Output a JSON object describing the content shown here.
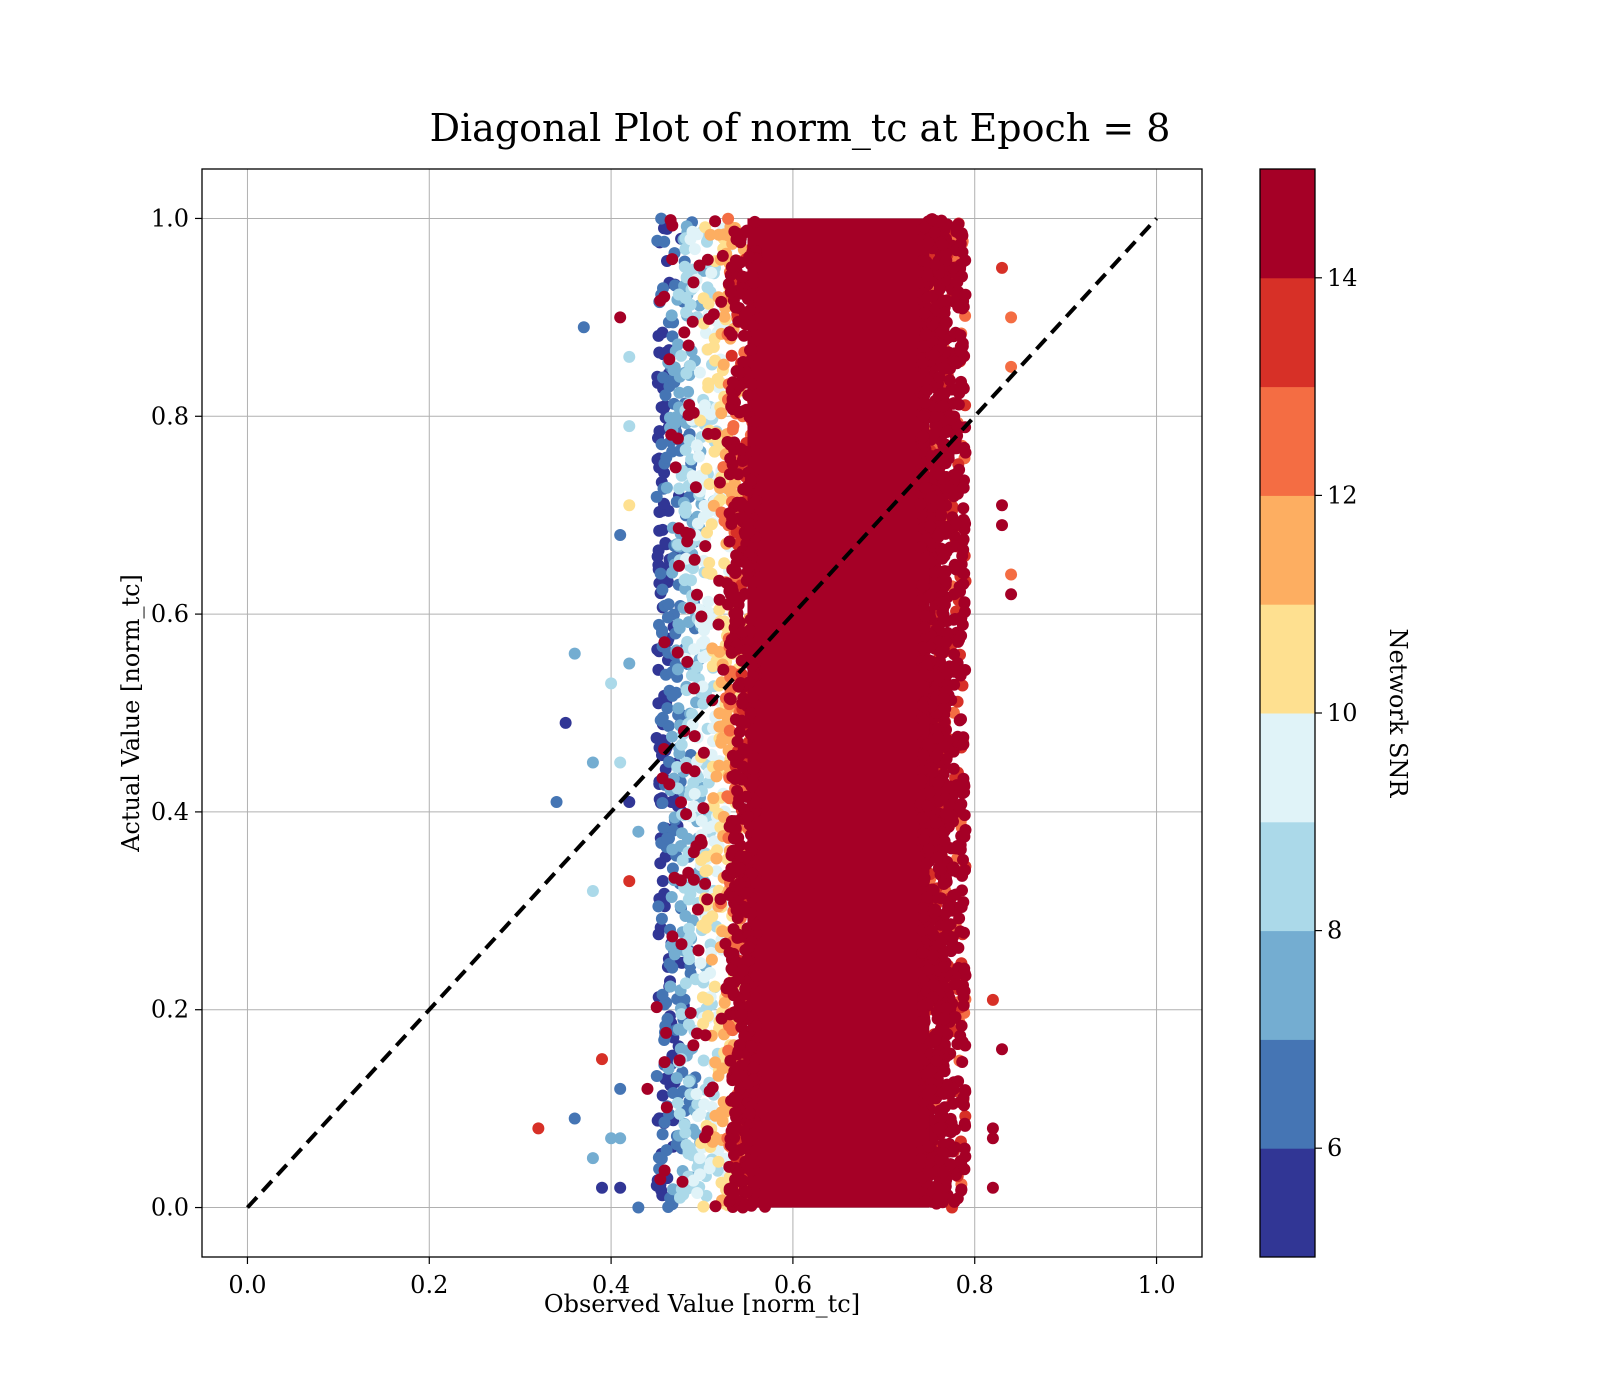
{
  "chart_data": {
    "type": "scatter",
    "title": "Diagonal Plot of norm_tc at Epoch = 8",
    "xlabel": "Observed Value [norm_tc]",
    "ylabel": "Actual Value [norm_tc]",
    "xlim": [
      -0.05,
      1.05
    ],
    "ylim": [
      -0.05,
      1.05
    ],
    "xticks": [
      "0.0",
      "0.2",
      "0.4",
      "0.6",
      "0.8",
      "1.0"
    ],
    "yticks": [
      "0.0",
      "0.2",
      "0.4",
      "0.6",
      "0.8",
      "1.0"
    ],
    "grid": true,
    "reference_line": {
      "style": "dashed",
      "color": "#000000",
      "from": [
        0,
        0
      ],
      "to": [
        1,
        1
      ]
    },
    "colorbar": {
      "label": "Network SNR",
      "range": [
        5,
        15
      ],
      "ticks": [
        "6",
        "8",
        "10",
        "12",
        "14"
      ],
      "levels": [
        5,
        6,
        7,
        8,
        9,
        10,
        11,
        12,
        13,
        14,
        15
      ],
      "colors": [
        "#313695",
        "#4575b4",
        "#74add1",
        "#abd9e9",
        "#e0f3f8",
        "#fee090",
        "#fdae61",
        "#f46d43",
        "#d73027",
        "#a50026"
      ]
    },
    "distribution": {
      "y_range": [
        0,
        1
      ],
      "dense_core_x_range": [
        0.55,
        0.75
      ],
      "core_snr": 15,
      "low_snr_edge_x": 0.45
    },
    "outliers": [
      {
        "x": 0.37,
        "y": 0.89,
        "snr": 6.5
      },
      {
        "x": 0.41,
        "y": 0.9,
        "snr": 14.5
      },
      {
        "x": 0.42,
        "y": 0.86,
        "snr": 8.5
      },
      {
        "x": 0.42,
        "y": 0.79,
        "snr": 8.5
      },
      {
        "x": 0.41,
        "y": 0.68,
        "snr": 6.5
      },
      {
        "x": 0.42,
        "y": 0.71,
        "snr": 10.5
      },
      {
        "x": 0.36,
        "y": 0.56,
        "snr": 7.0
      },
      {
        "x": 0.42,
        "y": 0.55,
        "snr": 7.0
      },
      {
        "x": 0.4,
        "y": 0.53,
        "snr": 8.5
      },
      {
        "x": 0.35,
        "y": 0.49,
        "snr": 5.5
      },
      {
        "x": 0.38,
        "y": 0.45,
        "snr": 7.0
      },
      {
        "x": 0.41,
        "y": 0.45,
        "snr": 8.5
      },
      {
        "x": 0.34,
        "y": 0.41,
        "snr": 6.0
      },
      {
        "x": 0.42,
        "y": 0.41,
        "snr": 5.5
      },
      {
        "x": 0.43,
        "y": 0.38,
        "snr": 7.0
      },
      {
        "x": 0.38,
        "y": 0.32,
        "snr": 8.5
      },
      {
        "x": 0.42,
        "y": 0.33,
        "snr": 13.5
      },
      {
        "x": 0.39,
        "y": 0.15,
        "snr": 13.5
      },
      {
        "x": 0.41,
        "y": 0.12,
        "snr": 6.5
      },
      {
        "x": 0.44,
        "y": 0.12,
        "snr": 14.5
      },
      {
        "x": 0.32,
        "y": 0.08,
        "snr": 13.5
      },
      {
        "x": 0.36,
        "y": 0.09,
        "snr": 6.5
      },
      {
        "x": 0.4,
        "y": 0.07,
        "snr": 7.0
      },
      {
        "x": 0.41,
        "y": 0.07,
        "snr": 7.0
      },
      {
        "x": 0.38,
        "y": 0.05,
        "snr": 7.0
      },
      {
        "x": 0.39,
        "y": 0.02,
        "snr": 5.5
      },
      {
        "x": 0.41,
        "y": 0.02,
        "snr": 5.5
      },
      {
        "x": 0.43,
        "y": 0.0,
        "snr": 6.0
      },
      {
        "x": 0.84,
        "y": 0.9,
        "snr": 12.5
      },
      {
        "x": 0.84,
        "y": 0.85,
        "snr": 12.5
      },
      {
        "x": 0.83,
        "y": 0.95,
        "snr": 13.5
      },
      {
        "x": 0.84,
        "y": 0.64,
        "snr": 12.5
      },
      {
        "x": 0.84,
        "y": 0.62,
        "snr": 14.5
      },
      {
        "x": 0.83,
        "y": 0.71,
        "snr": 14.5
      },
      {
        "x": 0.83,
        "y": 0.69,
        "snr": 14.5
      },
      {
        "x": 0.83,
        "y": 0.16,
        "snr": 14.5
      },
      {
        "x": 0.82,
        "y": 0.02,
        "snr": 14.5
      },
      {
        "x": 0.82,
        "y": 0.07,
        "snr": 14.5
      },
      {
        "x": 0.82,
        "y": 0.21,
        "snr": 13.5
      },
      {
        "x": 0.82,
        "y": 0.08,
        "snr": 14.5
      }
    ]
  }
}
